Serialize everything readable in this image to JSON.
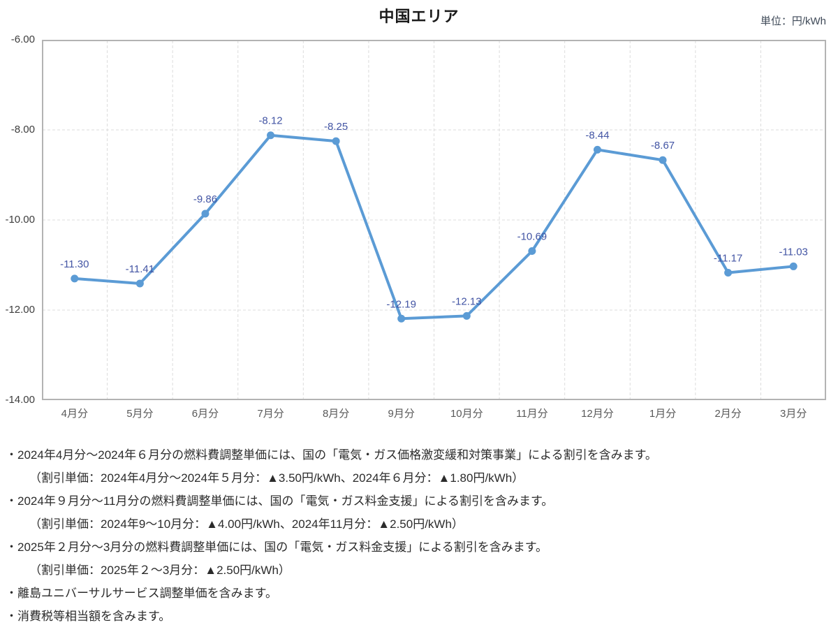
{
  "chart_data": {
    "type": "line",
    "title": "中国エリア",
    "unit_label": "単位：円/kWh",
    "categories": [
      "4月分",
      "5月分",
      "6月分",
      "7月分",
      "8月分",
      "9月分",
      "10月分",
      "11月分",
      "12月分",
      "1月分",
      "2月分",
      "3月分"
    ],
    "values": [
      -11.3,
      -11.41,
      -9.86,
      -8.12,
      -8.25,
      -12.19,
      -12.13,
      -10.69,
      -8.44,
      -8.67,
      -11.17,
      -11.03
    ],
    "value_labels": [
      "-11.30",
      "-11.41",
      "-9.86",
      "-8.12",
      "-8.25",
      "-12.19",
      "-12.13",
      "-10.69",
      "-8.44",
      "-8.67",
      "-11.17",
      "-11.03"
    ],
    "ylim": [
      -14,
      -6
    ],
    "ytick_labels": [
      "-6.00",
      "-8.00",
      "-10.00",
      "-12.00",
      "-14.00"
    ],
    "ytick_values": [
      -6,
      -8,
      -10,
      -12,
      -14
    ],
    "grid": true,
    "legend_position": "none",
    "xlabel": "",
    "ylabel": "",
    "colors": {
      "line": "#5b9bd5",
      "marker": "#5b9bd5",
      "data_label": "#4355a4",
      "grid_line": "#dcdcdc",
      "plot_border": "#b3b3b3",
      "axis_text": "#595959",
      "title_text": "#1a1a1a",
      "unit_text": "#3f4a58"
    }
  },
  "footnotes": [
    {
      "text": "・2024年4月分～2024年６月分の燃料費調整単価には、国の「電気・ガス価格激変緩和対策事業」による割引を含みます。",
      "indent": 0
    },
    {
      "text": "（割引単価：2024年4月分～2024年５月分：▲3.50円/kWh、2024年６月分：▲1.80円/kWh）",
      "indent": 1
    },
    {
      "text": "・2024年９月分～11月分の燃料費調整単価には、国の「電気・ガス料金支援」による割引を含みます。",
      "indent": 0
    },
    {
      "text": "（割引単価：2024年9～10月分：▲4.00円/kWh、2024年11月分：▲2.50円/kWh）",
      "indent": 1
    },
    {
      "text": "・2025年２月分～3月分の燃料費調整単価には、国の「電気・ガス料金支援」による割引を含みます。",
      "indent": 0
    },
    {
      "text": "（割引単価：2025年２～3月分：▲2.50円/kWh）",
      "indent": 1
    },
    {
      "text": "・離島ユニバーサルサービス調整単価を含みます。",
      "indent": 0
    },
    {
      "text": "・消費税等相当額を含みます。",
      "indent": 0
    }
  ]
}
